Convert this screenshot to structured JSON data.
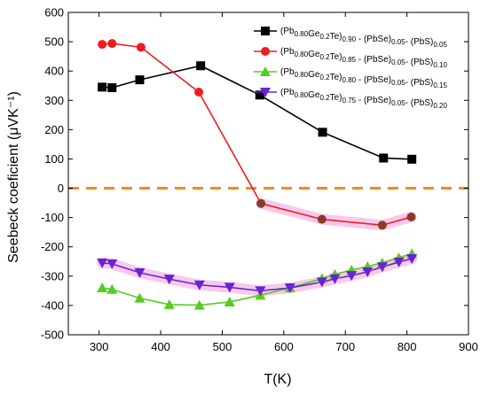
{
  "chart_data": {
    "type": "line",
    "title": "",
    "xlabel": "T(K)",
    "ylabel": "Seebeck coeficient (μVK⁻¹)",
    "xlim": [
      250,
      900
    ],
    "ylim": [
      -500,
      600
    ],
    "xticks": [
      300,
      400,
      500,
      600,
      700,
      800,
      900
    ],
    "yticks": [
      -500,
      -400,
      -300,
      -200,
      -100,
      0,
      100,
      200,
      300,
      400,
      500,
      600
    ],
    "zero_line": {
      "y": 0,
      "color": "#f28a1e",
      "style": "dashed"
    },
    "legend_position": "top-right",
    "series": [
      {
        "name": "(Pb0.80Ge0.2Te)0.90 - (PbSe)0.05- (PbS)0.05",
        "legend_parts": [
          [
            "(Pb",
            "n"
          ],
          [
            "0.80",
            "sub"
          ],
          [
            "Ge",
            "n"
          ],
          [
            "0.2",
            "sub"
          ],
          [
            "Te)",
            "n"
          ],
          [
            "0.90",
            "sub"
          ],
          [
            " - (PbSe)",
            "n"
          ],
          [
            "0.05",
            "sub"
          ],
          [
            "- (PbS)",
            "n"
          ],
          [
            "0.05",
            "sub"
          ]
        ],
        "color": "#000000",
        "marker": "square",
        "x": [
          305,
          321,
          366,
          465,
          561,
          663,
          762,
          808
        ],
        "y": [
          345,
          343,
          370,
          418,
          318,
          191,
          103,
          99
        ]
      },
      {
        "name": "(Pb0.80Ge0.2Te)0.85 - (PbSe)0.05- (PbS)0.10",
        "legend_parts": [
          [
            "(Pb",
            "n"
          ],
          [
            "0.80",
            "sub"
          ],
          [
            "Ge",
            "n"
          ],
          [
            "0.2",
            "sub"
          ],
          [
            "Te)",
            "n"
          ],
          [
            "0.85",
            "sub"
          ],
          [
            " - (PbSe)",
            "n"
          ],
          [
            "0.05",
            "sub"
          ],
          [
            "- (PbS)",
            "n"
          ],
          [
            "0.10",
            "sub"
          ]
        ],
        "color": "#ee1c1c",
        "marker": "circle",
        "x": [
          305,
          321,
          368,
          462,
          563,
          662,
          760,
          807
        ],
        "y": [
          491,
          494,
          481,
          328,
          -52,
          -106,
          -126,
          -98
        ]
      },
      {
        "name": "(Pb0.80Ge0.2Te)0.80 - (PbSe)0.05- (PbS)0.15",
        "legend_parts": [
          [
            "(Pb",
            "n"
          ],
          [
            "0.80",
            "sub"
          ],
          [
            "Ge",
            "n"
          ],
          [
            "0.2",
            "sub"
          ],
          [
            "Te)",
            "n"
          ],
          [
            "0.80",
            "sub"
          ],
          [
            " - (PbSe)",
            "n"
          ],
          [
            "0.05",
            "sub"
          ],
          [
            "- (PbS)",
            "n"
          ],
          [
            "0.15",
            "sub"
          ]
        ],
        "color": "#55cc22",
        "marker": "triangle-up",
        "x": [
          305,
          321,
          366,
          414,
          463,
          512,
          562,
          610,
          662,
          683,
          710,
          736,
          760,
          787,
          808
        ],
        "y": [
          -340,
          -345,
          -375,
          -397,
          -399,
          -388,
          -365,
          -340,
          -308,
          -294,
          -279,
          -267,
          -255,
          -237,
          -223
        ]
      },
      {
        "name": "(Pb0.80Ge0.2Te)0.75 - (PbSe)0.05- (PbS)0.20",
        "legend_parts": [
          [
            "(Pb",
            "n"
          ],
          [
            "0.80",
            "sub"
          ],
          [
            "Ge",
            "n"
          ],
          [
            "0.2",
            "sub"
          ],
          [
            "Te)",
            "n"
          ],
          [
            "0.75",
            "sub"
          ],
          [
            " - (PbSe)",
            "n"
          ],
          [
            "0.05",
            "sub"
          ],
          [
            "- (PbS)",
            "n"
          ],
          [
            "0.20",
            "sub"
          ]
        ],
        "color": "#6a22d4",
        "marker": "triangle-down",
        "x": [
          305,
          321,
          366,
          414,
          463,
          512,
          562,
          610,
          662,
          683,
          710,
          736,
          760,
          787,
          808
        ],
        "y": [
          -255,
          -258,
          -288,
          -310,
          -330,
          -338,
          -350,
          -340,
          -320,
          -309,
          -298,
          -285,
          -268,
          -252,
          -240
        ]
      }
    ],
    "highlight_color": "#f4b7e6"
  }
}
